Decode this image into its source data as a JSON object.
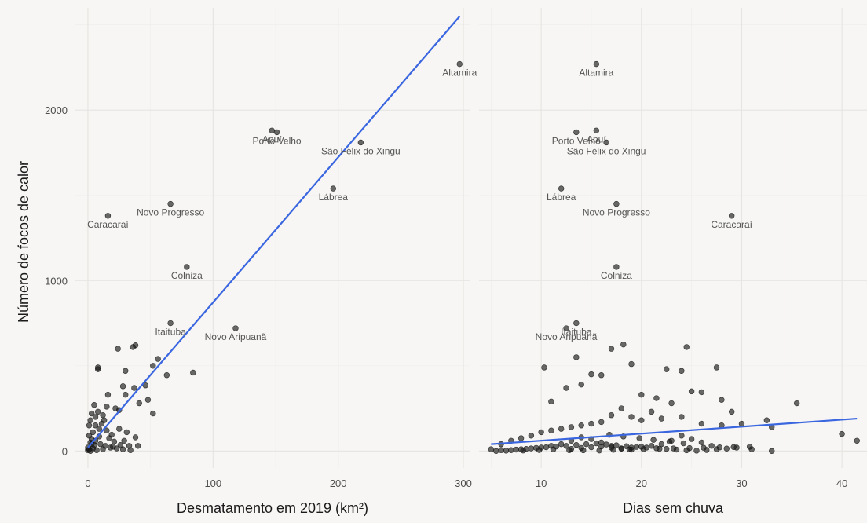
{
  "chart_data": {
    "type": "scatter",
    "ylabel": "Número de focos de calor",
    "ylim": [
      -100,
      2600
    ],
    "yticks": [
      0,
      1000,
      2000
    ],
    "grid": true,
    "panels": [
      {
        "xlabel": "Desmatamento em 2019 (km²)",
        "xlim": [
          -10,
          305
        ],
        "xticks": [
          0,
          100,
          200,
          300
        ],
        "trend": {
          "x": [
            0,
            297
          ],
          "y": [
            20,
            2550
          ],
          "color": "#3a66e0"
        },
        "labeled": [
          {
            "label": "Altamira",
            "x": 297,
            "y": 2270
          },
          {
            "label": "Apuí",
            "x": 147,
            "y": 1880
          },
          {
            "label": "Porto Velho",
            "x": 151,
            "y": 1870
          },
          {
            "label": "São Félix do Xingu",
            "x": 218,
            "y": 1810
          },
          {
            "label": "Lábrea",
            "x": 196,
            "y": 1540
          },
          {
            "label": "Novo Progresso",
            "x": 66,
            "y": 1450
          },
          {
            "label": "Caracaraí",
            "x": 16,
            "y": 1380
          },
          {
            "label": "Colniza",
            "x": 79,
            "y": 1080
          },
          {
            "label": "Itaituba",
            "x": 66,
            "y": 750
          },
          {
            "label": "Novo Aripuanã",
            "x": 118,
            "y": 720
          }
        ],
        "points": [
          [
            8,
            490
          ],
          [
            8,
            480
          ],
          [
            24,
            600
          ],
          [
            38,
            620
          ],
          [
            36,
            610
          ],
          [
            56,
            540
          ],
          [
            52,
            500
          ],
          [
            84,
            460
          ],
          [
            63,
            445
          ],
          [
            30,
            470
          ],
          [
            28,
            380
          ],
          [
            46,
            385
          ],
          [
            37,
            370
          ],
          [
            48,
            300
          ],
          [
            30,
            330
          ],
          [
            16,
            330
          ],
          [
            41,
            280
          ],
          [
            52,
            220
          ],
          [
            25,
            240
          ],
          [
            22,
            250
          ],
          [
            15,
            260
          ],
          [
            8,
            230
          ],
          [
            12,
            210
          ],
          [
            5,
            270
          ],
          [
            3,
            220
          ],
          [
            2,
            180
          ],
          [
            6,
            150
          ],
          [
            9,
            130
          ],
          [
            4,
            110
          ],
          [
            1,
            90
          ],
          [
            3,
            70
          ],
          [
            6,
            60
          ],
          [
            2,
            50
          ],
          [
            10,
            40
          ],
          [
            14,
            30
          ],
          [
            18,
            20
          ],
          [
            4,
            15
          ],
          [
            1,
            10
          ],
          [
            0,
            5
          ],
          [
            2,
            0
          ],
          [
            7,
            5
          ],
          [
            12,
            10
          ],
          [
            20,
            25
          ],
          [
            23,
            15
          ],
          [
            28,
            10
          ],
          [
            34,
            5
          ],
          [
            38,
            80
          ],
          [
            40,
            30
          ],
          [
            29,
            60
          ],
          [
            19,
            95
          ],
          [
            15,
            120
          ],
          [
            11,
            160
          ],
          [
            0,
            20
          ],
          [
            3,
            40
          ],
          [
            5,
            35
          ],
          [
            26,
            35
          ],
          [
            33,
            30
          ],
          [
            17,
            75
          ],
          [
            21,
            55
          ],
          [
            9,
            85
          ],
          [
            13,
            180
          ],
          [
            6,
            200
          ],
          [
            1,
            150
          ],
          [
            25,
            130
          ],
          [
            31,
            110
          ]
        ]
      },
      {
        "xlabel": "Dias sem chuva",
        "xlim": [
          3.8,
          42.5
        ],
        "xticks": [
          10,
          20,
          30,
          40
        ],
        "trend": {
          "x": [
            5,
            41.5
          ],
          "y": [
            40,
            190
          ],
          "color": "#3a66e0"
        },
        "labeled": [
          {
            "label": "Altamira",
            "x": 15.5,
            "y": 2270
          },
          {
            "label": "Apuí",
            "x": 15.5,
            "y": 1880
          },
          {
            "label": "Porto Velho",
            "x": 13.5,
            "y": 1870
          },
          {
            "label": "São Félix do Xingu",
            "x": 16.5,
            "y": 1810
          },
          {
            "label": "Lábrea",
            "x": 12,
            "y": 1540
          },
          {
            "label": "Novo Progresso",
            "x": 17.5,
            "y": 1450
          },
          {
            "label": "Caracaraí",
            "x": 29,
            "y": 1380
          },
          {
            "label": "Colniza",
            "x": 17.5,
            "y": 1080
          },
          {
            "label": "Itaituba",
            "x": 13.5,
            "y": 750
          },
          {
            "label": "Novo Aripuanã",
            "x": 12.5,
            "y": 720
          }
        ],
        "points": [
          [
            10.3,
            490
          ],
          [
            13.5,
            550
          ],
          [
            17,
            600
          ],
          [
            18.2,
            625
          ],
          [
            24.5,
            610
          ],
          [
            27.5,
            490
          ],
          [
            19,
            510
          ],
          [
            16,
            445
          ],
          [
            15,
            450
          ],
          [
            22.5,
            480
          ],
          [
            24,
            470
          ],
          [
            35.5,
            280
          ],
          [
            11,
            290
          ],
          [
            12.5,
            370
          ],
          [
            14,
            390
          ],
          [
            20,
            330
          ],
          [
            21.5,
            310
          ],
          [
            25,
            350
          ],
          [
            26,
            345
          ],
          [
            28,
            300
          ],
          [
            18,
            250
          ],
          [
            23,
            280
          ],
          [
            29,
            230
          ],
          [
            19,
            200
          ],
          [
            17,
            210
          ],
          [
            21,
            230
          ],
          [
            30,
            160
          ],
          [
            32.5,
            180
          ],
          [
            33,
            140
          ],
          [
            40,
            100
          ],
          [
            41.5,
            60
          ],
          [
            33,
            0
          ],
          [
            31,
            10
          ],
          [
            29.5,
            20
          ],
          [
            27,
            30
          ],
          [
            26,
            50
          ],
          [
            25,
            70
          ],
          [
            24,
            90
          ],
          [
            23,
            60
          ],
          [
            22,
            40
          ],
          [
            21,
            30
          ],
          [
            20,
            25
          ],
          [
            19,
            20
          ],
          [
            18,
            15
          ],
          [
            17,
            30
          ],
          [
            16,
            50
          ],
          [
            15,
            70
          ],
          [
            14,
            80
          ],
          [
            13,
            60
          ],
          [
            12,
            40
          ],
          [
            11,
            30
          ],
          [
            10,
            20
          ],
          [
            9,
            15
          ],
          [
            8,
            10
          ],
          [
            7,
            5
          ],
          [
            6,
            5
          ],
          [
            5,
            10
          ],
          [
            5.5,
            0
          ],
          [
            6.5,
            2
          ],
          [
            7.5,
            8
          ],
          [
            8.5,
            12
          ],
          [
            9.5,
            18
          ],
          [
            10.5,
            22
          ],
          [
            11.5,
            26
          ],
          [
            12.5,
            30
          ],
          [
            13.5,
            35
          ],
          [
            14.5,
            40
          ],
          [
            15.5,
            45
          ],
          [
            16.5,
            38
          ],
          [
            17.5,
            33
          ],
          [
            18.5,
            28
          ],
          [
            19.5,
            24
          ],
          [
            20.5,
            20
          ],
          [
            21.5,
            16
          ],
          [
            22.5,
            12
          ],
          [
            23.5,
            8
          ],
          [
            24.5,
            4
          ],
          [
            25.5,
            2
          ],
          [
            26.5,
            6
          ],
          [
            27.5,
            10
          ],
          [
            28.5,
            14
          ],
          [
            7,
            60
          ],
          [
            8,
            75
          ],
          [
            9,
            90
          ],
          [
            10,
            110
          ],
          [
            11,
            120
          ],
          [
            12,
            130
          ],
          [
            13,
            140
          ],
          [
            14,
            150
          ],
          [
            15,
            160
          ],
          [
            16,
            170
          ],
          [
            20,
            180
          ],
          [
            22,
            190
          ],
          [
            24,
            200
          ],
          [
            26,
            160
          ],
          [
            28,
            150
          ],
          [
            6,
            40
          ],
          [
            8.2,
            3
          ],
          [
            9.8,
            6
          ],
          [
            11.2,
            9
          ],
          [
            12.8,
            5
          ],
          [
            14.2,
            4
          ],
          [
            15.8,
            3
          ],
          [
            17.2,
            7
          ],
          [
            18.8,
            9
          ],
          [
            20.2,
            11
          ],
          [
            21.8,
            13
          ],
          [
            23.2,
            15
          ],
          [
            24.8,
            17
          ],
          [
            26.2,
            19
          ],
          [
            27.8,
            21
          ],
          [
            29.2,
            23
          ],
          [
            30.8,
            25
          ],
          [
            16.8,
            95
          ],
          [
            18.2,
            85
          ],
          [
            19.8,
            75
          ],
          [
            21.2,
            65
          ],
          [
            22.8,
            55
          ],
          [
            24.2,
            45
          ],
          [
            13,
            12
          ],
          [
            14,
            18
          ],
          [
            15,
            22
          ],
          [
            16,
            26
          ],
          [
            17,
            20
          ],
          [
            18,
            14
          ],
          [
            19,
            8
          ]
        ]
      }
    ]
  }
}
